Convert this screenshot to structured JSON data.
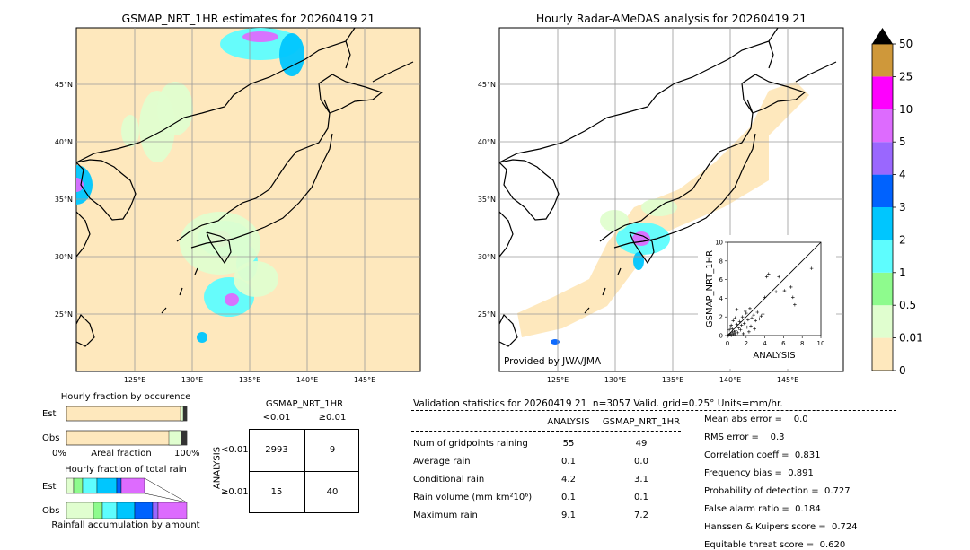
{
  "colors": {
    "land_bg": "#fee8bd",
    "coast": "#000000",
    "grid": "#9a9a9a",
    "scale_colors": [
      "#fee8bd",
      "#e0fecf",
      "#8efb8d",
      "#5efdfe",
      "#00c6fe",
      "#0062fe",
      "#9a67fe",
      "#dd6bfe",
      "#fe00fe",
      "#cf983a"
    ]
  },
  "left_map": {
    "title": "GSMAP_NRT_1HR estimates for 20260419 21",
    "lat_labels": [
      "45°N",
      "40°N",
      "35°N",
      "30°N",
      "25°N"
    ],
    "lon_labels": [
      "125°E",
      "130°E",
      "135°E",
      "140°E",
      "145°E"
    ]
  },
  "right_map": {
    "title": "Hourly Radar-AMeDAS analysis for 20260419 21",
    "lat_labels": [
      "45°N",
      "40°N",
      "35°N",
      "30°N",
      "25°N"
    ],
    "lon_labels": [
      "125°E",
      "130°E",
      "135°E",
      "140°E",
      "145°E"
    ],
    "provided_by": "Provided by JWA/JMA"
  },
  "colorbar": {
    "labels": [
      "50",
      "25",
      "10",
      "5",
      "4",
      "3",
      "2",
      "1",
      "0.5",
      "0.01",
      "0"
    ]
  },
  "chart_data": [
    {
      "type": "scatter",
      "title": "",
      "xlabel": "ANALYSIS",
      "ylabel": "GSMAP_NRT_1HR",
      "xlim": [
        0,
        10
      ],
      "ylim": [
        0,
        10
      ],
      "xticks": [
        "0",
        "2",
        "4",
        "6",
        "8",
        "10"
      ],
      "yticks": [
        "0",
        "2",
        "4",
        "6",
        "8",
        "10"
      ],
      "points": [
        [
          0.1,
          0.0
        ],
        [
          0.2,
          0.1
        ],
        [
          0.3,
          0.2
        ],
        [
          0.4,
          0.0
        ],
        [
          0.5,
          0.3
        ],
        [
          0.6,
          0.1
        ],
        [
          0.7,
          0.4
        ],
        [
          0.8,
          0.2
        ],
        [
          0.2,
          0.6
        ],
        [
          0.3,
          0.9
        ],
        [
          0.5,
          0.7
        ],
        [
          0.9,
          0.5
        ],
        [
          1.0,
          1.2
        ],
        [
          1.1,
          0.3
        ],
        [
          1.2,
          0.8
        ],
        [
          1.3,
          1.5
        ],
        [
          0.4,
          1.1
        ],
        [
          0.6,
          1.6
        ],
        [
          0.8,
          1.9
        ],
        [
          1.5,
          1.1
        ],
        [
          1.6,
          2.0
        ],
        [
          1.8,
          1.3
        ],
        [
          2.0,
          2.4
        ],
        [
          2.2,
          1.7
        ],
        [
          2.4,
          2.9
        ],
        [
          2.6,
          1.9
        ],
        [
          2.8,
          2.2
        ],
        [
          3.0,
          1.6
        ],
        [
          3.2,
          2.5
        ],
        [
          3.4,
          1.8
        ],
        [
          1.0,
          2.8
        ],
        [
          1.9,
          2.6
        ],
        [
          2.1,
          0.9
        ],
        [
          2.5,
          1.0
        ],
        [
          3.6,
          2.1
        ],
        [
          3.8,
          2.3
        ],
        [
          1.4,
          0.6
        ],
        [
          1.7,
          0.2
        ],
        [
          0.9,
          0.0
        ],
        [
          2.3,
          0.4
        ],
        [
          2.9,
          0.7
        ],
        [
          4.0,
          4.1
        ],
        [
          4.2,
          6.3
        ],
        [
          4.4,
          6.6
        ],
        [
          5.2,
          4.7
        ],
        [
          5.5,
          6.3
        ],
        [
          6.1,
          4.8
        ],
        [
          6.8,
          5.2
        ],
        [
          7.0,
          4.1
        ],
        [
          7.2,
          3.3
        ],
        [
          9.0,
          7.2
        ]
      ]
    },
    {
      "type": "bar",
      "title": "Hourly fraction by occurence",
      "categories": [
        "Est",
        "Obs"
      ],
      "xlabel": "Areal fraction",
      "xticks": [
        "0%",
        "100%"
      ]
    },
    {
      "type": "bar",
      "title": "Hourly fraction of total rain",
      "categories": [
        "Est",
        "Obs"
      ],
      "xlabel": "Rainfall accumulation by amount"
    },
    {
      "type": "table",
      "title": "GSMAP_NRT_1HR",
      "col_headers": [
        "<0.01",
        "≥0.01"
      ],
      "row_axis_label": "ANALYSIS",
      "row_headers": [
        "<0.01",
        "≥0.01"
      ],
      "cells": [
        [
          "2993",
          "9"
        ],
        [
          "15",
          "40"
        ]
      ]
    }
  ],
  "validation": {
    "header": "Validation statistics for 20260419 21  n=3057 Valid. grid=0.25° Units=mm/hr.",
    "col_analysis": "ANALYSIS",
    "col_gsmap": "GSMAP_NRT_1HR",
    "rows": [
      {
        "label": "Num of gridpoints raining",
        "a": "55",
        "g": "49"
      },
      {
        "label": "Average rain",
        "a": "0.1",
        "g": "0.0"
      },
      {
        "label": "Conditional rain",
        "a": "4.2",
        "g": "3.1"
      },
      {
        "label": "Rain volume (mm km²10⁶)",
        "a": "0.1",
        "g": "0.1"
      },
      {
        "label": "Maximum rain",
        "a": "9.1",
        "g": "7.2"
      }
    ],
    "scores": [
      "Mean abs error =    0.0",
      "RMS error =    0.3",
      "Correlation coeff =  0.831",
      "Frequency bias =  0.891",
      "Probability of detection =  0.727",
      "False alarm ratio =  0.184",
      "Hanssen & Kuipers score =  0.724",
      "Equitable threat score =  0.620"
    ]
  }
}
